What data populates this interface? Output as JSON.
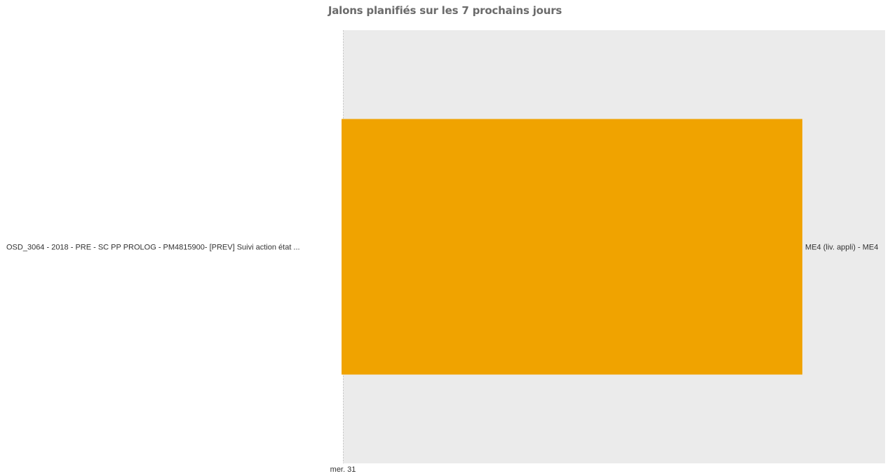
{
  "chart_data": {
    "type": "bar",
    "orientation": "horizontal",
    "title": "Jalons planifiés sur les 7 prochains jours",
    "categories": [
      "OSD_3064 -  2018 - PRE -  SC PP PROLOG -  PM4815900- [PREV] Suivi action état ..."
    ],
    "series": [
      {
        "values": [
          0.85
        ],
        "labels": [
          "ME4 (liv. appli) - ME4"
        ],
        "color": "#f0a300"
      }
    ],
    "x_tick_labels": [
      "mer. 31"
    ],
    "xlim": [
      0,
      1
    ],
    "grid": false,
    "plot_background": "#ebebeb"
  }
}
